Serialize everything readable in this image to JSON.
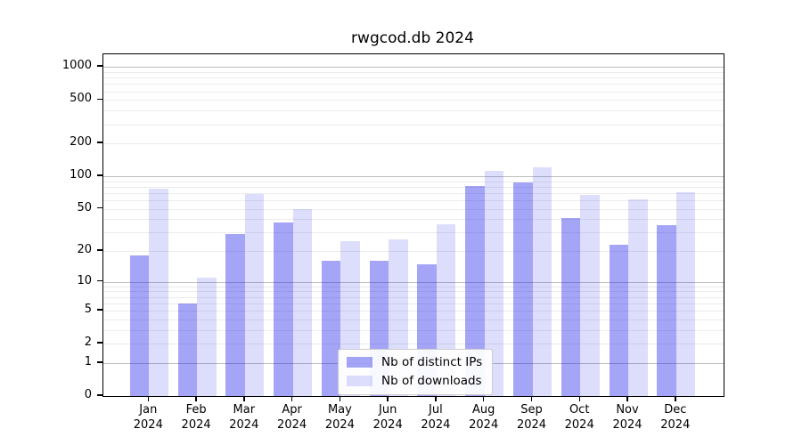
{
  "title": "rwgcod.db 2024",
  "chart_data": {
    "type": "bar",
    "title": "rwgcod.db 2024",
    "scale": "log1p",
    "categories": [
      "Jan",
      "Feb",
      "Mar",
      "Apr",
      "May",
      "Jun",
      "Jul",
      "Aug",
      "Sep",
      "Oct",
      "Nov",
      "Dec"
    ],
    "year_label": "2024",
    "series": [
      {
        "name": "Nb of distinct IPs",
        "color": "rgba(30,30,235,0.40)",
        "values": [
          18,
          6,
          29,
          37,
          16,
          16,
          15,
          82,
          88,
          41,
          23,
          35
        ]
      },
      {
        "name": "Nb of downloads",
        "color": "rgba(30,30,235,0.15)",
        "values": [
          77,
          11,
          68,
          50,
          25,
          26,
          36,
          113,
          120,
          67,
          61,
          71
        ]
      }
    ],
    "xlabel": "",
    "ylabel": "",
    "ylim": [
      0,
      1300
    ],
    "y_ticks": [
      1000,
      500,
      200,
      100,
      50,
      20,
      10,
      5,
      2,
      1,
      0
    ],
    "y_gridlines_major": [
      1,
      10,
      100,
      1000
    ],
    "y_gridlines_minor": [
      2,
      3,
      4,
      5,
      6,
      7,
      8,
      9,
      20,
      30,
      40,
      50,
      60,
      70,
      80,
      90,
      200,
      300,
      400,
      500,
      600,
      700,
      800,
      900
    ],
    "grid": "on",
    "legend_position": "lower center"
  }
}
